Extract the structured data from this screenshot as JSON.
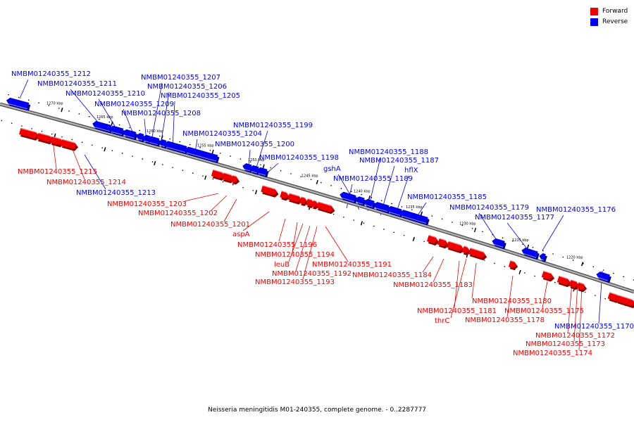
{
  "legend": {
    "items": [
      {
        "label": "Forward",
        "color": "#ee0000"
      },
      {
        "label": "Reverse",
        "color": "#0000ee"
      }
    ]
  },
  "caption": "Neisseria meningitidis M01-240355, complete genome. - 0..2287777",
  "colors": {
    "forward": "#ee0000",
    "reverse": "#0000ee",
    "backbone": "#7f7f7f"
  },
  "axis": {
    "direction": "decreasing",
    "ticks": [
      "1270 kbp",
      "1265 kbp",
      "1260 kbp",
      "1255 kbp",
      "1250 kbp",
      "1245 kbp",
      "1240 kbp",
      "1235 kbp",
      "1230 kbp",
      "1225 kbp",
      "1220 kbp"
    ]
  },
  "forward_labels": [
    "NMBM01240355_1215",
    "NMBM01240355_1214",
    "NMBM01240355_1203",
    "NMBM01240355_1202",
    "NMBM01240355_1201",
    "aspA",
    "NMBM01240355_1196",
    "NMBM01240355_1194",
    "leuB",
    "NMBM01240355_1192",
    "NMBM01240355_1193",
    "NMBM01240355_1191",
    "NMBM01240355_1184",
    "NMBM01240355_1183",
    "NMBM01240355_1180",
    "NMBM01240355_1181",
    "thrC",
    "NMBM01240355_1178",
    "NMBM01240355_1175",
    "NMBM01240355_1172",
    "NMBM01240355_1173",
    "NMBM01240355_1174"
  ],
  "reverse_labels": [
    "NMBM01240355_1212",
    "NMBM01240355_1211",
    "NMBM01240355_1210",
    "NMBM01240355_1209",
    "NMBM01240355_1208",
    "NMBM01240355_1207",
    "NMBM01240355_1206",
    "NMBM01240355_1205",
    "NMBM01240355_1204",
    "NMBM01240355_1200",
    "NMBM01240355_1199",
    "NMBM01240355_1198",
    "NMBM01240355_1213",
    "NMBM01240355_1188",
    "NMBM01240355_1187",
    "gshA",
    "hflX",
    "NMBM01240355_1189",
    "NMBM01240355_1185",
    "NMBM01240355_1179",
    "NMBM01240355_1177",
    "NMBM01240355_1176",
    "NMBM01240355_1170"
  ]
}
